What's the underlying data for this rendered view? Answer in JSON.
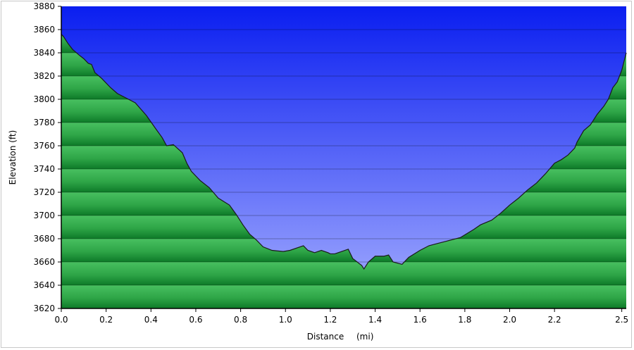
{
  "chart_data": {
    "type": "area",
    "xlabel": "Distance",
    "xunit": "(mi)",
    "ylabel": "Elevation (ft)",
    "xlim": [
      0.0,
      2.52
    ],
    "ylim": [
      3620,
      3880
    ],
    "x_ticks": [
      "0.0",
      "0.2",
      "0.4",
      "0.6",
      "0.8",
      "1.0",
      "1.2",
      "1.4",
      "1.6",
      "1.8",
      "2.0",
      "2.2",
      "2.5"
    ],
    "y_ticks": [
      "3620",
      "3640",
      "3660",
      "3680",
      "3700",
      "3720",
      "3740",
      "3760",
      "3780",
      "3800",
      "3820",
      "3840",
      "3860",
      "3880"
    ],
    "grid": true,
    "colors": {
      "sky_top": "#0a1ef0",
      "sky_bottom": "#a6afff",
      "ground_light": "#48c060",
      "ground_dark": "#0d7a28",
      "line": "#1a1a1a"
    },
    "x": [
      0.0,
      0.01,
      0.03,
      0.05,
      0.08,
      0.1,
      0.12,
      0.135,
      0.15,
      0.18,
      0.22,
      0.25,
      0.3,
      0.33,
      0.38,
      0.42,
      0.45,
      0.47,
      0.5,
      0.54,
      0.56,
      0.58,
      0.62,
      0.66,
      0.7,
      0.75,
      0.78,
      0.81,
      0.84,
      0.87,
      0.9,
      0.94,
      0.99,
      1.02,
      1.05,
      1.08,
      1.1,
      1.13,
      1.16,
      1.19,
      1.2,
      1.22,
      1.25,
      1.28,
      1.3,
      1.34,
      1.35,
      1.37,
      1.4,
      1.44,
      1.46,
      1.48,
      1.52,
      1.55,
      1.6,
      1.64,
      1.68,
      1.72,
      1.78,
      1.84,
      1.87,
      1.92,
      1.96,
      2.0,
      2.04,
      2.08,
      2.12,
      2.16,
      2.2,
      2.23,
      2.26,
      2.29,
      2.3,
      2.33,
      2.36,
      2.39,
      2.42,
      2.44,
      2.46,
      2.48,
      2.5,
      2.52
    ],
    "y": [
      3856,
      3854,
      3848,
      3843,
      3838,
      3835,
      3831,
      3830,
      3823,
      3818,
      3810,
      3805,
      3800,
      3797,
      3786,
      3775,
      3767,
      3760,
      3761,
      3754,
      3745,
      3738,
      3730,
      3724,
      3715,
      3709,
      3701,
      3692,
      3684,
      3679,
      3673,
      3670,
      3669,
      3670,
      3672,
      3674,
      3670,
      3668,
      3670,
      3668,
      3667,
      3667,
      3669,
      3671,
      3663,
      3657,
      3654,
      3660,
      3665,
      3665,
      3666,
      3660,
      3658,
      3664,
      3670,
      3674,
      3676,
      3678,
      3681,
      3688,
      3692,
      3696,
      3702,
      3709,
      3715,
      3722,
      3728,
      3736,
      3745,
      3748,
      3752,
      3758,
      3763,
      3773,
      3778,
      3787,
      3794,
      3800,
      3810,
      3815,
      3825,
      3840
    ]
  }
}
